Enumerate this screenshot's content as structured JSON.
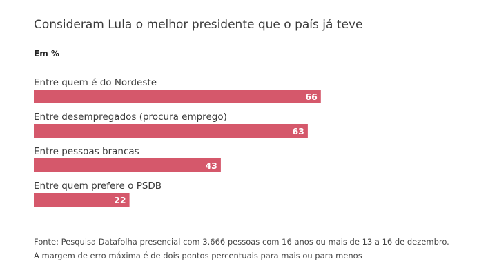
{
  "title": "Consideram Lula o melhor presidente que o país já teve",
  "unit_label": "Em %",
  "source": "Fonte: Pesquisa Datafolha presencial com 3.666 pessoas com 16 anos ou mais de 13 a 16 de dezembro. A margem de erro máxima é de dois pontos percentuais para mais ou para menos",
  "colors": {
    "bar": "#d5586b",
    "bar_value_text": "#ffffff",
    "category_text": "#3a3a3a"
  },
  "chart_data": {
    "type": "bar",
    "orientation": "horizontal",
    "title": "Consideram Lula o melhor presidente que o país já teve",
    "ylabel": "Em %",
    "categories": [
      "Entre quem é do Nordeste",
      "Entre desempregados (procura emprego)",
      "Entre pessoas brancas",
      "Entre quem prefere o PSDB"
    ],
    "values": [
      66,
      63,
      43,
      22
    ],
    "xlim": [
      0,
      100
    ],
    "grid": false,
    "legend": "none"
  }
}
